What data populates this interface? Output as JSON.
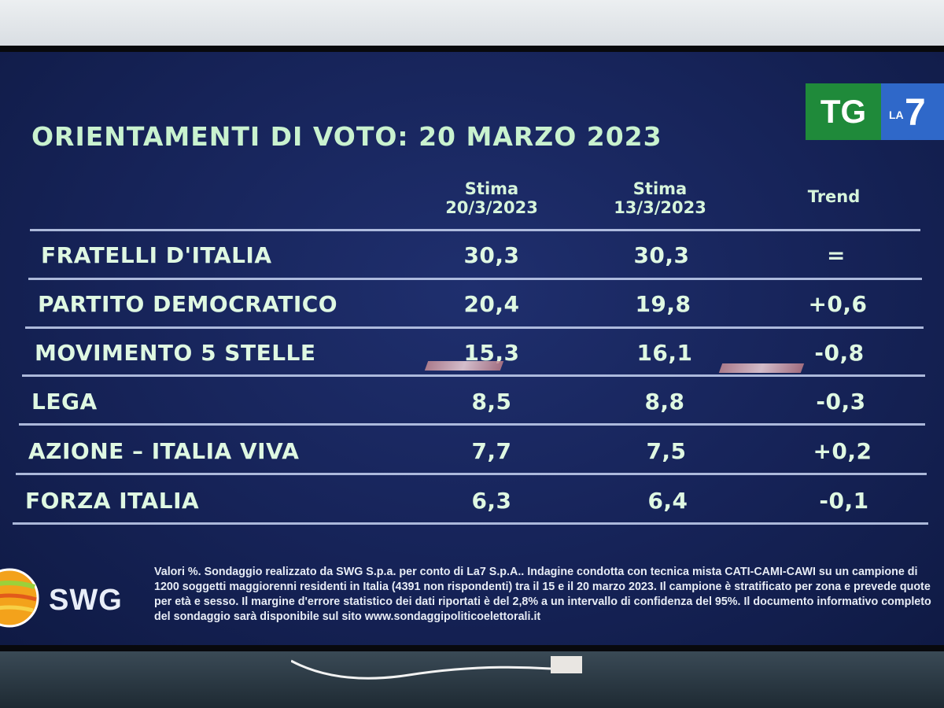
{
  "title": "ORIENTAMENTI DI VOTO: 20 MARZO 2023",
  "logo": {
    "tg": "TG",
    "la": "LA",
    "seven": "7"
  },
  "columns": {
    "stima1": {
      "line1": "Stima",
      "line2": "20/3/2023"
    },
    "stima2": {
      "line1": "Stima",
      "line2": "13/3/2023"
    },
    "trend": "Trend"
  },
  "rows": [
    {
      "party": "FRATELLI D'ITALIA",
      "stima1": "30,3",
      "stima2": "30,3",
      "trend": "="
    },
    {
      "party": "PARTITO DEMOCRATICO",
      "stima1": "20,4",
      "stima2": "19,8",
      "trend": "+0,6"
    },
    {
      "party": "MOVIMENTO 5 STELLE",
      "stima1": "15,3",
      "stima2": "16,1",
      "trend": "-0,8"
    },
    {
      "party": "LEGA",
      "stima1": "8,5",
      "stima2": "8,8",
      "trend": "-0,3"
    },
    {
      "party": "AZIONE – ITALIA VIVA",
      "stima1": "7,7",
      "stima2": "7,5",
      "trend": "+0,2"
    },
    {
      "party": "FORZA ITALIA",
      "stima1": "6,3",
      "stima2": "6,4",
      "trend": "-0,1"
    }
  ],
  "source_logo": "SWG",
  "footnote": "Valori %. Sondaggio realizzato da SWG S.p.a. per conto di La7 S.p.A.. Indagine condotta con tecnica mista CATI-CAMI-CAWI su un campione di 1200 soggetti maggiorenni residenti in Italia (4391 non rispondenti) tra il 15 e il 20 marzo 2023. Il campione è stratificato per zona e prevede quote per età e sesso. Il margine d'errore statistico dei dati riportati è del 2,8% a un intervallo di confidenza del 95%. Il documento informativo completo del sondaggio sarà disponibile sul sito www.sondaggipoliticoelettorali.it",
  "colors": {
    "screen_bg": "#162358",
    "text_green": "#d6f4db",
    "tg_green": "#1f8a3a",
    "la7_blue": "#2f68c9"
  }
}
